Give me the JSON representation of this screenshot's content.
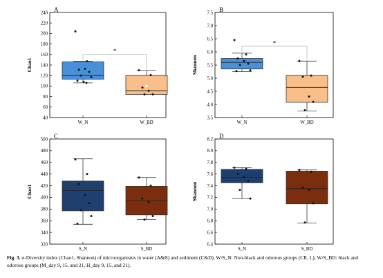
{
  "chart_data": [
    {
      "type": "box",
      "panel_label": "A",
      "ylabel": "Chao1",
      "ylim": [
        40,
        240
      ],
      "yticks": [
        40,
        60,
        80,
        100,
        120,
        140,
        160,
        180,
        200,
        220,
        240
      ],
      "categories": [
        "W_N",
        "W_BD"
      ],
      "colors": [
        "#4a90d9",
        "#f9bf8a"
      ],
      "mean_markers": [
        false,
        true
      ],
      "boxes": [
        {
          "whisker_low": 106,
          "q1": 113,
          "median": 120,
          "q3": 146,
          "whisker_high": 147,
          "mean": 128
        },
        {
          "whisker_low": 84,
          "q1": 84,
          "median": 91,
          "q3": 120,
          "whisker_high": 130,
          "mean": 100
        }
      ],
      "points": [
        [
          204,
          147,
          131,
          133,
          127,
          120,
          117,
          110,
          108,
          106
        ],
        [
          130,
          121,
          97,
          91,
          84,
          84
        ]
      ],
      "significance": "*"
    },
    {
      "type": "box",
      "panel_label": "B",
      "ylabel": "Shannon",
      "ylim": [
        3.5,
        7.5
      ],
      "yticks": [
        3.5,
        4.0,
        4.5,
        5.0,
        5.5,
        6.0,
        6.5,
        7.0,
        7.5
      ],
      "categories": [
        "W_N",
        "W_BD"
      ],
      "colors": [
        "#4a90d9",
        "#f9bf8a"
      ],
      "mean_markers": [
        false,
        false
      ],
      "boxes": [
        {
          "whisker_low": 5.25,
          "q1": 5.35,
          "median": 5.6,
          "q3": 5.75,
          "whisker_high": 5.95,
          "mean": 5.6
        },
        {
          "whisker_low": 3.75,
          "q1": 4.08,
          "median": 4.65,
          "q3": 5.1,
          "whisker_high": 5.65,
          "mean": 4.6
        }
      ],
      "points": [
        [
          6.45,
          5.9,
          5.75,
          5.65,
          5.55,
          5.5,
          5.3,
          5.27
        ],
        [
          5.65,
          5.1,
          5.05,
          4.3,
          4.1,
          3.78
        ]
      ],
      "significance": "*"
    },
    {
      "type": "box",
      "panel_label": "C",
      "ylabel": "Chao1",
      "ylim": [
        320,
        500
      ],
      "yticks": [
        320,
        340,
        360,
        380,
        400,
        420,
        440,
        460,
        480,
        500
      ],
      "categories": [
        "S_N",
        "S_BD"
      ],
      "colors": [
        "#1f3f6e",
        "#7a2e0d"
      ],
      "mean_markers": [
        false,
        false
      ],
      "boxes": [
        {
          "whisker_low": 354,
          "q1": 377,
          "median": 412,
          "q3": 428,
          "whisker_high": 466,
          "mean": 405
        },
        {
          "whisker_low": 362,
          "q1": 370,
          "median": 394,
          "q3": 419,
          "whisker_high": 434,
          "mean": 395
        }
      ],
      "points": [
        [
          465,
          440,
          423,
          404,
          390,
          378,
          368,
          355
        ],
        [
          434,
          420,
          398,
          392,
          368,
          362
        ]
      ],
      "significance": ""
    },
    {
      "type": "box",
      "panel_label": "D",
      "ylabel": "Shannon",
      "ylim": [
        6.4,
        8.2
      ],
      "yticks": [
        6.4,
        6.6,
        6.8,
        7.0,
        7.2,
        7.4,
        7.6,
        7.8,
        8.0,
        8.2
      ],
      "categories": [
        "S_N",
        "S_BD"
      ],
      "colors": [
        "#1f3f6e",
        "#7a2e0d"
      ],
      "mean_markers": [
        false,
        false
      ],
      "boxes": [
        {
          "whisker_low": 7.18,
          "q1": 7.45,
          "median": 7.54,
          "q3": 7.68,
          "whisker_high": 7.71,
          "mean": 7.52
        },
        {
          "whisker_low": 6.76,
          "q1": 7.09,
          "median": 7.35,
          "q3": 7.65,
          "whisker_high": 7.67,
          "mean": 7.3
        }
      ],
      "points": [
        [
          7.71,
          7.69,
          7.6,
          7.55,
          7.48,
          7.33,
          7.18
        ],
        [
          7.67,
          7.64,
          7.37,
          7.33,
          7.1,
          6.77
        ]
      ],
      "significance": ""
    }
  ],
  "caption": {
    "label": "Fig. 3.",
    "text": "α-Diversity index (Chao1, Shannon) of microorganisms in water (A&B) and sediment (C&D). W/S_N: Non-black and odorous groups (CR, L); W/S_BD: black and odorous groups (M_day 9, 15, and 21, H_day 9, 15, and 21)."
  }
}
